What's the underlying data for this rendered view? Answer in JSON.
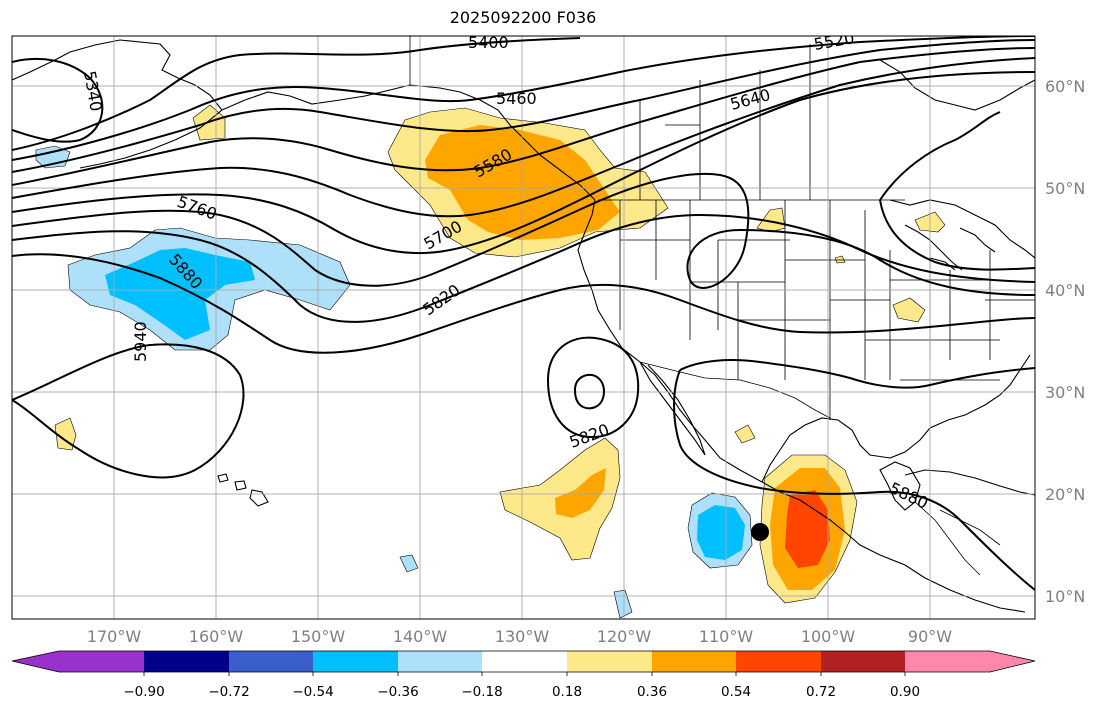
{
  "title": "2025092200 F036",
  "map": {
    "lat_labels": [
      "60°N",
      "50°N",
      "40°N",
      "30°N",
      "20°N",
      "10°N"
    ],
    "lon_labels": [
      "170°W",
      "160°W",
      "150°W",
      "140°W",
      "130°W",
      "120°W",
      "110°W",
      "100°W",
      "90°W"
    ],
    "contour_labels": [
      "5400",
      "5520",
      "5340",
      "5460",
      "5640",
      "5580",
      "5760",
      "5700",
      "5880",
      "5820",
      "5940",
      "5820",
      "5880"
    ],
    "colors": {
      "neg_strong": "#00bfff",
      "neg_light": "#aee0fa",
      "pos_light": "#fde88a",
      "pos_mid": "#ffa500",
      "pos_strong": "#ff4500"
    }
  },
  "colorbar": {
    "ticks": [
      "−0.90",
      "−0.72",
      "−0.54",
      "−0.36",
      "−0.18",
      "0.18",
      "0.36",
      "0.54",
      "0.72",
      "0.90"
    ],
    "colors": [
      "#9932cc",
      "#00008b",
      "#3a5fcd",
      "#00bfff",
      "#aee0fa",
      "#ffffff",
      "#fde88a",
      "#ffa500",
      "#ff4500",
      "#b22222",
      "#ff88aa"
    ]
  }
}
